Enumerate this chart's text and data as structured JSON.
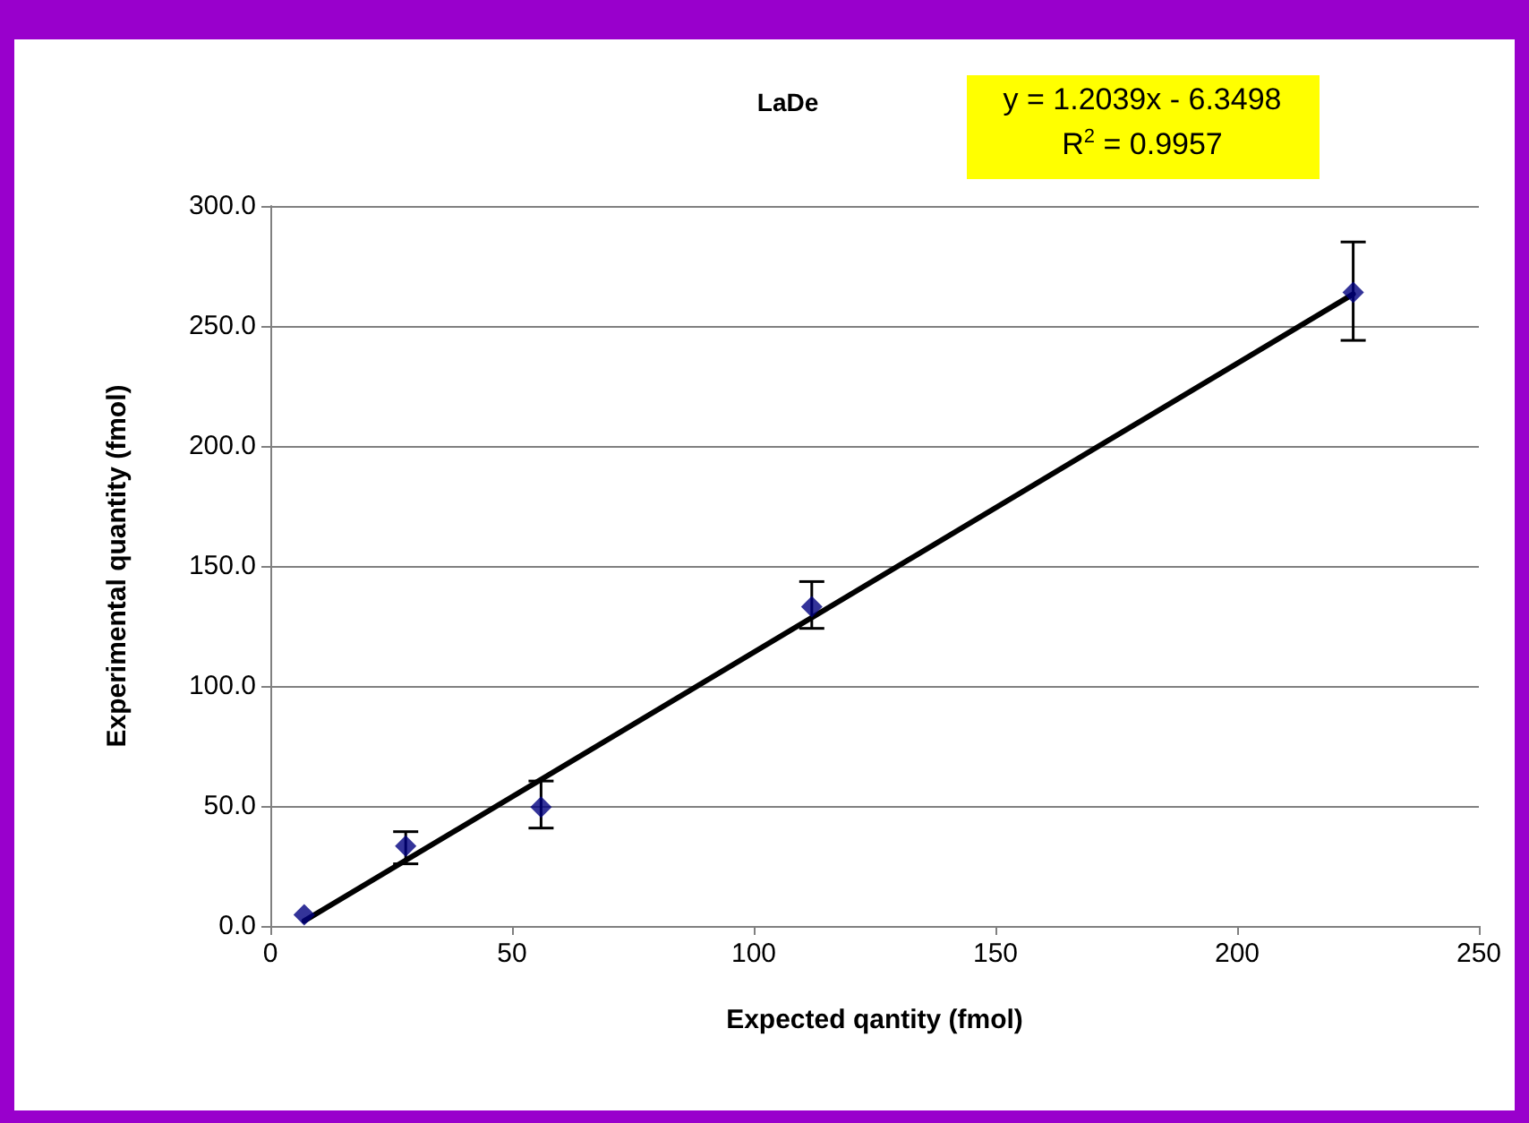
{
  "chart_data": {
    "type": "scatter",
    "title": "LaDe",
    "xlabel": "Expected qantity (fmol)",
    "ylabel": "Experimental quantity (fmol)",
    "annotations": [
      "y = 1.2039x - 6.3498",
      "R$^{2}$ = 0.9957"
    ],
    "xlim": [
      0,
      250
    ],
    "xticks": [
      0,
      50,
      100,
      150,
      200,
      250
    ],
    "ylim": [
      0,
      300
    ],
    "yticks": [
      {
        "value": 0,
        "label": "0.0"
      },
      {
        "value": 50,
        "label": "50.0"
      },
      {
        "value": 100,
        "label": "100.0"
      },
      {
        "value": 150,
        "label": "150.0"
      },
      {
        "value": 200,
        "label": "200.0"
      },
      {
        "value": 250,
        "label": "250.0"
      },
      {
        "value": 300,
        "label": "300.0"
      }
    ],
    "grid": "y",
    "series": [
      {
        "color": "#000080",
        "marker": "diamond",
        "x": [
          7,
          28,
          56,
          112,
          224
        ],
        "values": [
          4.7,
          33.3,
          49.5,
          133,
          264
        ],
        "errors": [
          null,
          [
            25.9,
            39.3
          ],
          [
            40.8,
            60.4
          ],
          [
            124,
            143.5
          ],
          [
            244,
            285
          ]
        ]
      },
      {
        "type": "line",
        "color": "#000000",
        "marker": "none",
        "line_style": "solid",
        "x": [
          7,
          224
        ],
        "values": [
          2.1,
          263.3
        ]
      }
    ]
  }
}
